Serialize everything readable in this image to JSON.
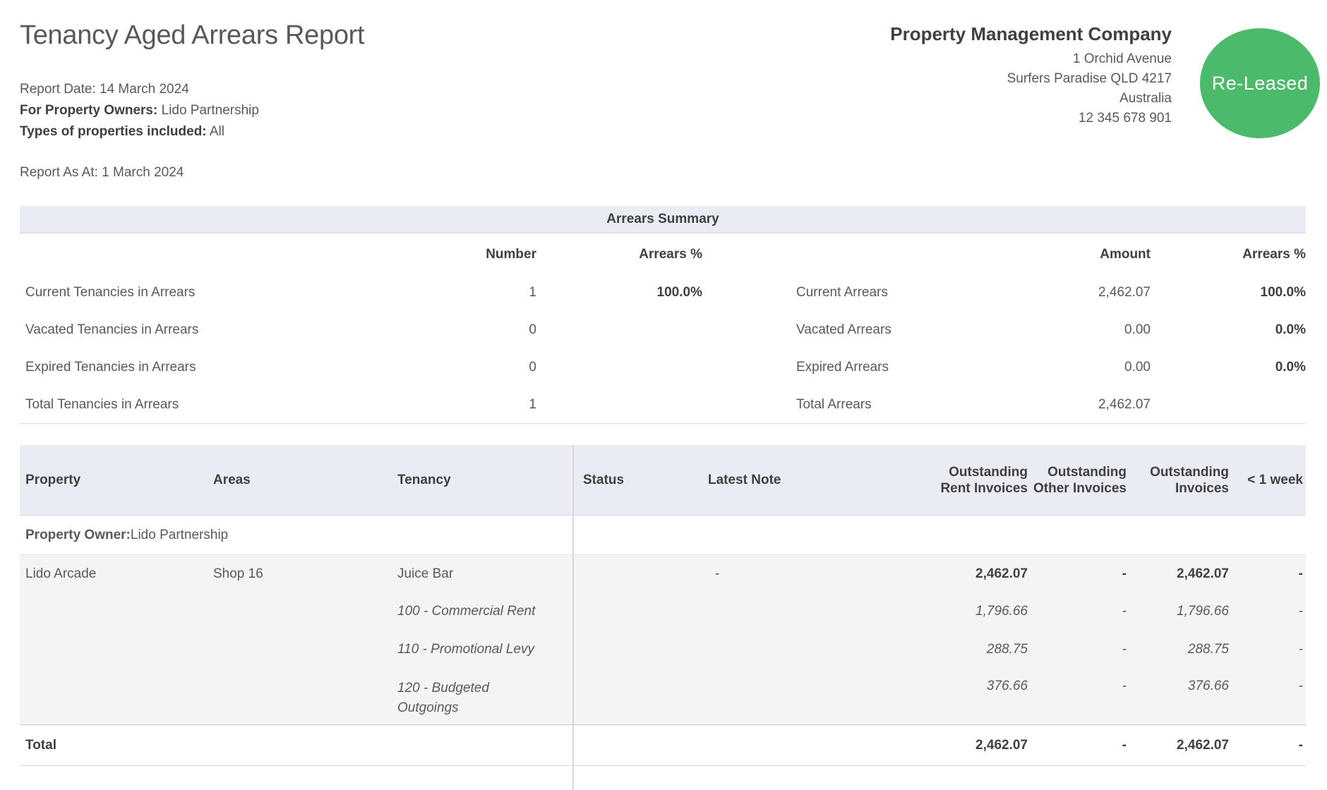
{
  "header": {
    "title": "Tenancy Aged Arrears Report",
    "report_date_label": "Report Date:",
    "report_date_value": " 14 March 2024",
    "owners_label": "For Property Owners:",
    "owners_value": " Lido Partnership",
    "types_label": "Types of properties included:",
    "types_value": " All",
    "as_at": "Report As At: 1 March 2024"
  },
  "company": {
    "name": "Property Management Company",
    "address_lines": [
      "1 Orchid Avenue",
      "Surfers Paradise QLD 4217",
      "Australia",
      "12 345 678 901"
    ],
    "logo_text": "Re-Leased",
    "logo_color": "#4cba6b"
  },
  "colors": {
    "accent_green": "#4cba6b",
    "band_background": "#e9edf3",
    "row_background": "#f4f4f4"
  },
  "summary": {
    "title": "Arrears Summary",
    "headers": {
      "number": "Number",
      "arrears_pct": "Arrears %",
      "amount": "Amount",
      "arrears_pct2": "Arrears %"
    },
    "rows": [
      {
        "label": "Current Tenancies in Arrears",
        "number": "1",
        "pct": "100.0%",
        "label2": "Current Arrears",
        "amount": "2,462.07",
        "pct2": "100.0%"
      },
      {
        "label": "Vacated Tenancies in Arrears",
        "number": "0",
        "pct": "",
        "label2": "Vacated Arrears",
        "amount": "0.00",
        "pct2": "0.0%"
      },
      {
        "label": "Expired Tenancies in Arrears",
        "number": "0",
        "pct": "",
        "label2": "Expired Arrears",
        "amount": "0.00",
        "pct2": "0.0%"
      },
      {
        "label": "Total Tenancies in Arrears",
        "number": "1",
        "pct": "",
        "label2": "Total Arrears",
        "amount": "2,462.07",
        "pct2": ""
      }
    ]
  },
  "table": {
    "headers": {
      "property": "Property",
      "areas": "Areas",
      "tenancy": "Tenancy",
      "status": "Status",
      "latest_note": "Latest Note",
      "rent": "Outstanding Rent Invoices",
      "other": "Outstanding Other Invoices",
      "invoices": "Outstanding Invoices",
      "week": "< 1 week"
    },
    "owner_label": "Property Owner:",
    "owner_value": " Lido Partnership",
    "row": {
      "property": "Lido Arcade",
      "areas": "Shop 16",
      "tenancy": "Juice Bar",
      "status": "",
      "latest_note": "-",
      "rent": "2,462.07",
      "other": "-",
      "invoices": "2,462.07",
      "week": "-"
    },
    "sub_rows": [
      {
        "name": "100 - Commercial Rent",
        "rent": "1,796.66",
        "other": "-",
        "invoices": "1,796.66",
        "week": "-"
      },
      {
        "name": "110 - Promotional Levy",
        "rent": "288.75",
        "other": "-",
        "invoices": "288.75",
        "week": "-"
      },
      {
        "name": "120 - Budgeted\nOutgoings",
        "rent": "376.66",
        "other": "-",
        "invoices": "376.66",
        "week": "-"
      }
    ],
    "total": {
      "label": "Total",
      "rent": "2,462.07",
      "other": "-",
      "invoices": "2,462.07",
      "week": "-"
    }
  }
}
